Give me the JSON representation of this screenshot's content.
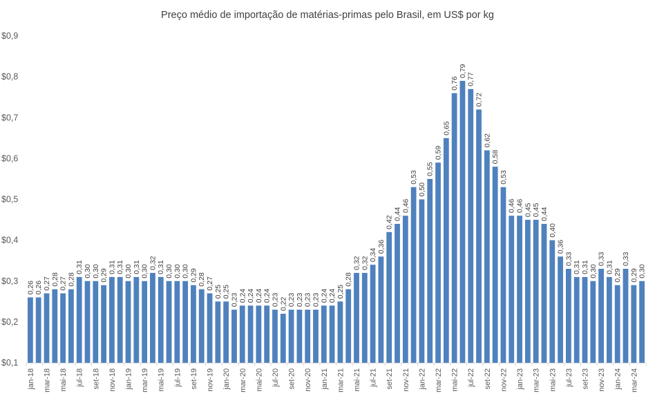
{
  "chart_data": {
    "type": "bar",
    "title": "Preço médio de importação de matérias-primas pelo Brasil, em US$ por kg",
    "xlabel": "",
    "ylabel": "",
    "ylim": [
      0.1,
      0.9
    ],
    "yticks": [
      0.1,
      0.2,
      0.3,
      0.4,
      0.5,
      0.6,
      0.7,
      0.8,
      0.9
    ],
    "ytick_labels": [
      "$0,1",
      "$0,2",
      "$0,3",
      "$0,4",
      "$0,5",
      "$0,6",
      "$0,7",
      "$0,8",
      "$0,9"
    ],
    "grid": false,
    "bar_color": "#4f81bd",
    "categories": [
      "jan-18",
      "fev-18",
      "mar-18",
      "abr-18",
      "mai-18",
      "jun-18",
      "jul-18",
      "ago-18",
      "set-18",
      "out-18",
      "nov-18",
      "dez-18",
      "jan-19",
      "fev-19",
      "mar-19",
      "abr-19",
      "mai-19",
      "jun-19",
      "jul-19",
      "ago-19",
      "set-19",
      "out-19",
      "nov-19",
      "dez-19",
      "jan-20",
      "fev-20",
      "mar-20",
      "abr-20",
      "mai-20",
      "jun-20",
      "jul-20",
      "ago-20",
      "set-20",
      "out-20",
      "nov-20",
      "dez-20",
      "jan-21",
      "fev-21",
      "mar-21",
      "abr-21",
      "mai-21",
      "jun-21",
      "jul-21",
      "ago-21",
      "set-21",
      "out-21",
      "nov-21",
      "dez-21",
      "jan-22",
      "fev-22",
      "mar-22",
      "abr-22",
      "mai-22",
      "jun-22",
      "jul-22",
      "ago-22",
      "set-22",
      "out-22",
      "nov-22",
      "dez-22",
      "jan-23",
      "fev-23",
      "mar-23",
      "abr-23",
      "mai-23",
      "jun-23",
      "jul-23",
      "ago-23",
      "set-23",
      "out-23",
      "nov-23",
      "dez-23",
      "jan-24",
      "fev-24",
      "mar-24",
      "abr-24"
    ],
    "shown_tick_labels": [
      "jan-18",
      "mar-18",
      "mai-18",
      "jul-18",
      "set-18",
      "nov-18",
      "jan-19",
      "mar-19",
      "mai-19",
      "jul-19",
      "set-19",
      "nov-19",
      "jan-20",
      "mar-20",
      "mai-20",
      "jul-20",
      "set-20",
      "nov-20",
      "jan-21",
      "mar-21",
      "mai-21",
      "jul-21",
      "set-21",
      "nov-21",
      "jan-22",
      "mar-22",
      "mai-22",
      "jul-22",
      "set-22",
      "nov-22",
      "jan-23",
      "mar-23",
      "mai-23",
      "jul-23",
      "set-23",
      "nov-23",
      "jan-24",
      "mar-24"
    ],
    "values": [
      0.26,
      0.26,
      0.27,
      0.28,
      0.27,
      0.28,
      0.31,
      0.3,
      0.3,
      0.29,
      0.31,
      0.31,
      0.3,
      0.31,
      0.3,
      0.32,
      0.31,
      0.3,
      0.3,
      0.3,
      0.29,
      0.28,
      0.27,
      0.25,
      0.25,
      0.23,
      0.24,
      0.24,
      0.24,
      0.24,
      0.23,
      0.22,
      0.23,
      0.23,
      0.23,
      0.23,
      0.24,
      0.24,
      0.25,
      0.28,
      0.32,
      0.32,
      0.34,
      0.36,
      0.42,
      0.44,
      0.46,
      0.53,
      0.5,
      0.55,
      0.59,
      0.65,
      0.76,
      0.79,
      0.77,
      0.72,
      0.62,
      0.58,
      0.53,
      0.46,
      0.46,
      0.45,
      0.45,
      0.44,
      0.4,
      0.36,
      0.33,
      0.31,
      0.31,
      0.3,
      0.33,
      0.31,
      0.29,
      0.33,
      0.29,
      0.3
    ],
    "data_labels": [
      "0,26",
      "0,26",
      "0,27",
      "0,28",
      "0,27",
      "0,28",
      "0,31",
      "0,30",
      "0,30",
      "0,29",
      "0,31",
      "0,31",
      "0,30",
      "0,31",
      "0,30",
      "0,32",
      "0,31",
      "0,30",
      "0,30",
      "0,30",
      "0,29",
      "0,28",
      "0,27",
      "0,25",
      "0,25",
      "0,23",
      "0,24",
      "0,24",
      "0,24",
      "0,24",
      "0,23",
      "0,22",
      "0,23",
      "0,23",
      "0,23",
      "0,23",
      "0,24",
      "0,24",
      "0,25",
      "0,28",
      "0,32",
      "0,32",
      "0,34",
      "0,36",
      "0,42",
      "0,44",
      "0,46",
      "0,53",
      "0,50",
      "0,55",
      "0,59",
      "0,65",
      "0,76",
      "0,79",
      "0,77",
      "0,72",
      "0,62",
      "0,58",
      "0,53",
      "0,46",
      "0,46",
      "0,45",
      "0,45",
      "0,44",
      "0,40",
      "0,36",
      "0,33",
      "0,31",
      "0,31",
      "0,30",
      "0,33",
      "0,31",
      "0,29",
      "0,33",
      "0,29",
      "0,30"
    ]
  }
}
